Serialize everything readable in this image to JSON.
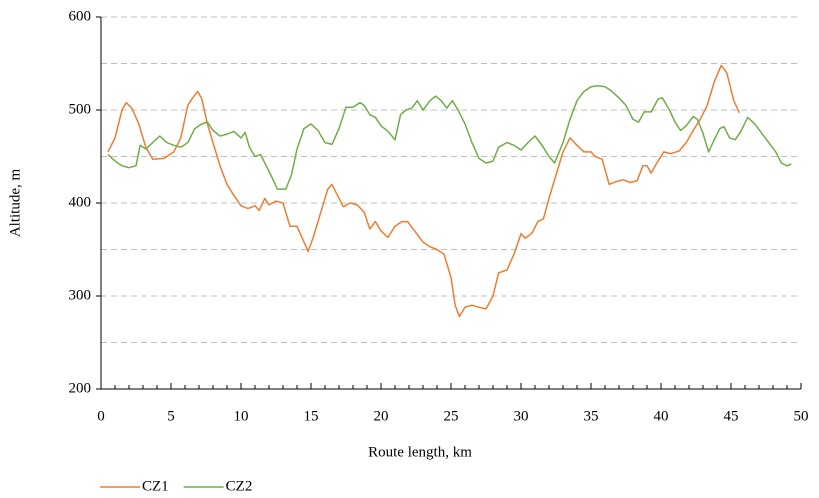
{
  "chart_data": {
    "type": "line",
    "xlabel": "Route length, km",
    "ylabel": "Altitude, m",
    "xlim": [
      0,
      50
    ],
    "xticks": [
      0,
      5,
      10,
      15,
      20,
      25,
      30,
      35,
      40,
      45,
      50
    ],
    "xminor_ticks": [
      1,
      2,
      3,
      4,
      6,
      7,
      8,
      9,
      11,
      12,
      13,
      14,
      16,
      17,
      18,
      19,
      21,
      22,
      23,
      24,
      26,
      27,
      28,
      29,
      31,
      32,
      33,
      34,
      36,
      37,
      38,
      39,
      41,
      42,
      43,
      44,
      46,
      47,
      48,
      49
    ],
    "ylim": [
      200,
      600
    ],
    "yticks": [
      200,
      300,
      400,
      500,
      600
    ],
    "grid_lines": [
      250,
      300,
      350,
      400,
      450,
      500,
      550,
      600
    ],
    "legend": "bottom-left",
    "series": [
      {
        "name": "CZ1",
        "color": "#ed7d31",
        "x": [
          0.5,
          1,
          1.5,
          1.8,
          2.2,
          2.7,
          3.2,
          3.7,
          4.5,
          5.2,
          5.7,
          6.2,
          6.5,
          6.9,
          7.2,
          7.6,
          8,
          8.5,
          9,
          9.5,
          10,
          10.5,
          11,
          11.3,
          11.7,
          12,
          12.5,
          13,
          13.5,
          14,
          14.5,
          14.8,
          15.2,
          15.7,
          16.2,
          16.5,
          16.9,
          17.3,
          17.8,
          18.3,
          18.8,
          19.2,
          19.6,
          20,
          20.5,
          21,
          21.5,
          21.9,
          22.5,
          23,
          23.5,
          24,
          24.5,
          25,
          25.3,
          25.6,
          26,
          26.5,
          27,
          27.5,
          28,
          28.4,
          29,
          29.5,
          30,
          30.3,
          30.8,
          31.2,
          31.6,
          32,
          32.5,
          33,
          33.5,
          34,
          34.5,
          35,
          35.3,
          35.8,
          36.3,
          36.8,
          37.3,
          37.8,
          38.3,
          38.7,
          39,
          39.3,
          39.7,
          40.2,
          40.7,
          41.3,
          41.8,
          42.3,
          42.8,
          43.3,
          43.8,
          44.3,
          44.7,
          45.2,
          45.6
        ],
        "values": [
          455,
          470,
          500,
          508,
          502,
          485,
          460,
          447,
          448,
          455,
          470,
          505,
          512,
          520,
          512,
          485,
          465,
          440,
          420,
          408,
          397,
          394,
          397,
          392,
          405,
          398,
          402,
          400,
          375,
          375,
          358,
          348,
          365,
          390,
          415,
          420,
          408,
          396,
          400,
          398,
          390,
          372,
          380,
          370,
          363,
          375,
          380,
          380,
          368,
          358,
          353,
          350,
          345,
          320,
          290,
          278,
          288,
          290,
          288,
          286,
          300,
          325,
          328,
          345,
          367,
          362,
          368,
          380,
          383,
          405,
          430,
          455,
          470,
          462,
          455,
          455,
          450,
          447,
          420,
          423,
          425,
          422,
          424,
          440,
          440,
          432,
          443,
          455,
          453,
          456,
          465,
          478,
          490,
          505,
          530,
          548,
          540,
          510,
          497
        ]
      },
      {
        "name": "CZ2",
        "color": "#70ad47",
        "x": [
          0.5,
          1,
          1.5,
          2,
          2.5,
          2.8,
          3.2,
          3.7,
          4.2,
          4.7,
          5.2,
          5.7,
          6.2,
          6.7,
          7.2,
          7.6,
          8,
          8.5,
          9,
          9.5,
          10,
          10.3,
          10.6,
          11,
          11.4,
          11.8,
          12.2,
          12.6,
          13.2,
          13.6,
          14,
          14.5,
          15,
          15.5,
          16,
          16.5,
          17,
          17.5,
          18,
          18.5,
          18.8,
          19.2,
          19.6,
          20,
          20.5,
          21,
          21.4,
          21.8,
          22.2,
          22.6,
          23,
          23.5,
          23.9,
          24.3,
          24.7,
          25.1,
          25.5,
          26,
          26.5,
          27,
          27.5,
          28,
          28.4,
          29,
          29.5,
          30,
          30.5,
          31,
          31.5,
          32,
          32.4,
          33,
          33.5,
          34,
          34.5,
          35,
          35.5,
          36,
          36.5,
          37,
          37.5,
          38,
          38.4,
          38.8,
          39.3,
          39.8,
          40.1,
          40.6,
          41,
          41.4,
          41.8,
          42.3,
          42.6,
          43,
          43.4,
          43.8,
          44.2,
          44.5,
          44.9,
          45.3,
          45.7,
          46.2,
          46.7,
          47.2,
          47.7,
          48.2,
          48.6,
          49,
          49.3
        ],
        "values": [
          452,
          445,
          440,
          438,
          440,
          462,
          458,
          465,
          472,
          465,
          462,
          460,
          465,
          480,
          485,
          487,
          478,
          472,
          474,
          477,
          470,
          476,
          460,
          450,
          452,
          440,
          428,
          415,
          415,
          430,
          458,
          480,
          485,
          478,
          465,
          463,
          480,
          503,
          503,
          508,
          505,
          495,
          492,
          483,
          477,
          468,
          495,
          500,
          502,
          510,
          500,
          510,
          515,
          510,
          502,
          510,
          500,
          485,
          465,
          448,
          443,
          445,
          460,
          465,
          462,
          457,
          465,
          472,
          462,
          450,
          443,
          465,
          490,
          510,
          520,
          525,
          526,
          525,
          520,
          513,
          505,
          490,
          487,
          498,
          498,
          512,
          513,
          500,
          487,
          478,
          483,
          493,
          490,
          475,
          455,
          468,
          480,
          482,
          470,
          468,
          477,
          492,
          485,
          475,
          465,
          455,
          443,
          440,
          442
        ]
      }
    ]
  }
}
